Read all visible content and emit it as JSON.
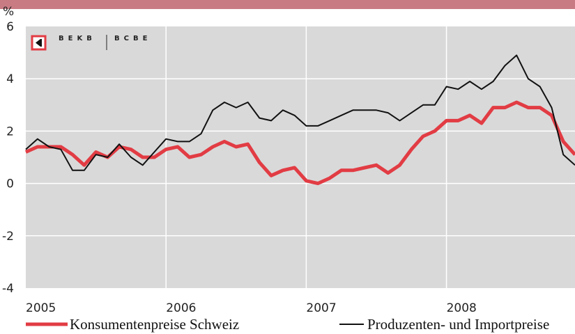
{
  "chart_data": {
    "type": "line",
    "y_unit": "%",
    "brand": [
      "BEKB",
      "BCBE"
    ],
    "categories": [
      "2005",
      null,
      null,
      null,
      null,
      null,
      null,
      null,
      null,
      null,
      null,
      null,
      "2006",
      null,
      null,
      null,
      null,
      null,
      null,
      null,
      null,
      null,
      null,
      null,
      "2007",
      null,
      null,
      null,
      null,
      null,
      null,
      null,
      null,
      null,
      null,
      null,
      "2008",
      null,
      null,
      null,
      null,
      null,
      null,
      null,
      null,
      null,
      null,
      null
    ],
    "series": [
      {
        "name": "Konsumentenpreise Schweiz",
        "color": "#e23c44",
        "width": 5,
        "values": [
          1.2,
          1.4,
          1.4,
          1.4,
          1.1,
          0.7,
          1.2,
          1.0,
          1.4,
          1.3,
          1.0,
          1.0,
          1.3,
          1.4,
          1.0,
          1.1,
          1.4,
          1.6,
          1.4,
          1.5,
          0.8,
          0.3,
          0.5,
          0.6,
          0.1,
          0.0,
          0.2,
          0.5,
          0.5,
          0.6,
          0.7,
          0.4,
          0.7,
          1.3,
          1.8,
          2.0,
          2.4,
          2.4,
          2.6,
          2.3,
          2.9,
          2.9,
          3.1,
          2.9,
          2.9,
          2.6,
          1.6,
          1.1
        ]
      },
      {
        "name": "Produzenten- und Importpreise",
        "color": "#111111",
        "width": 2,
        "values": [
          1.3,
          1.7,
          1.4,
          1.3,
          0.5,
          0.5,
          1.1,
          1.0,
          1.5,
          1.0,
          0.7,
          1.2,
          1.7,
          1.6,
          1.6,
          1.9,
          2.8,
          3.1,
          2.9,
          3.1,
          2.5,
          2.4,
          2.8,
          2.6,
          2.2,
          2.2,
          2.4,
          2.6,
          2.8,
          2.8,
          2.8,
          2.7,
          2.4,
          2.7,
          3.0,
          3.0,
          3.7,
          3.6,
          3.9,
          3.6,
          3.9,
          4.5,
          4.9,
          4.0,
          3.7,
          2.9,
          1.1,
          0.7
        ]
      }
    ],
    "ylim": [
      -4,
      6
    ],
    "yticks": [
      -4,
      -2,
      0,
      2,
      4,
      6
    ],
    "grid": true
  }
}
